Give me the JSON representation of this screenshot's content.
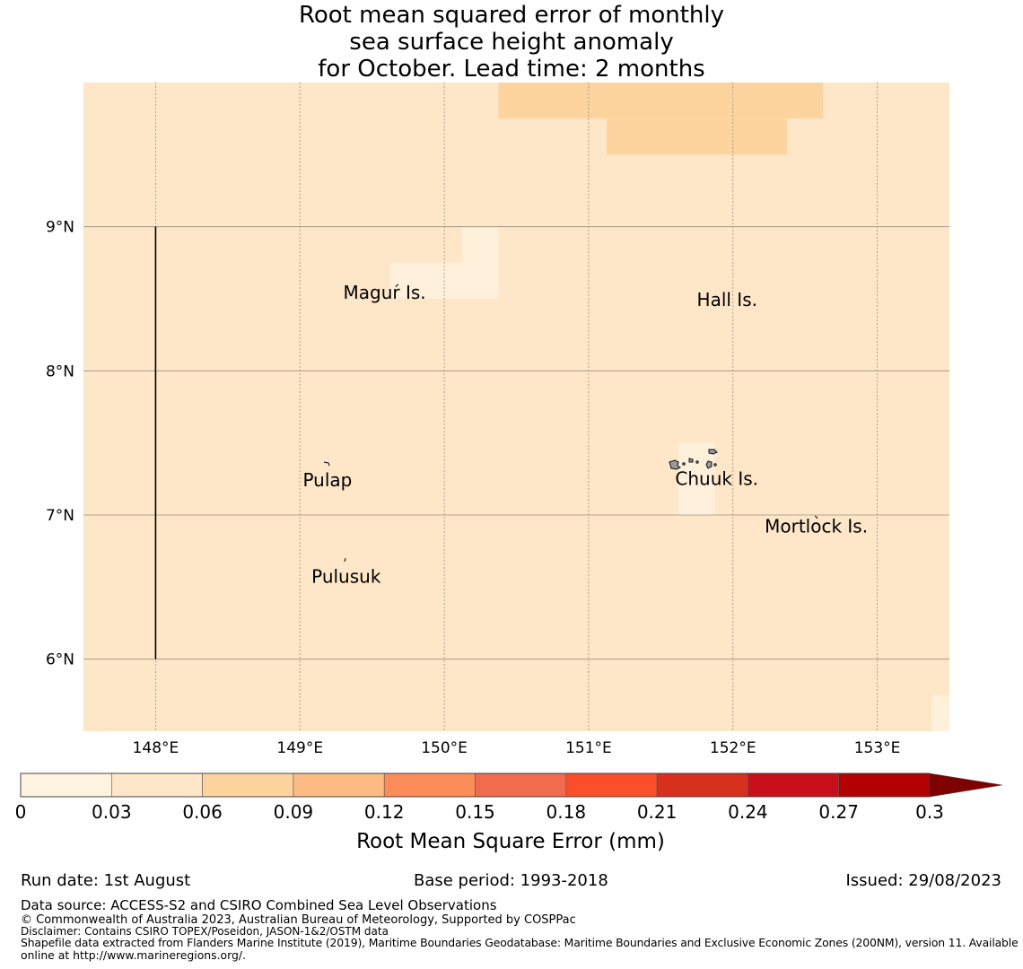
{
  "title": {
    "line1": "Root mean squared error of monthly",
    "line2": "sea surface height anomaly",
    "line3": "for October. Lead time: 2 months"
  },
  "map": {
    "lon_range": [
      147.5,
      153.5
    ],
    "lat_range": [
      5.5,
      10.0
    ],
    "x_ticks": [
      148,
      149,
      150,
      151,
      152,
      153
    ],
    "x_tick_labels": [
      "148°E",
      "149°E",
      "150°E",
      "151°E",
      "152°E",
      "153°E"
    ],
    "y_ticks": [
      9,
      8,
      7,
      6
    ],
    "y_tick_labels": [
      "9°N",
      "8°N",
      "7°N",
      "6°N"
    ],
    "grid": true,
    "background_color": "#fee6c8",
    "cells": [
      {
        "lon0": 150.375,
        "lon1": 152.625,
        "lat0": 9.75,
        "lat1": 10.0,
        "color": "#fdd49e"
      },
      {
        "lon0": 151.125,
        "lon1": 152.375,
        "lat0": 9.5,
        "lat1": 9.75,
        "color": "#fdd49e"
      },
      {
        "lon0": 150.125,
        "lon1": 150.375,
        "lat0": 8.75,
        "lat1": 9.0,
        "color": "#fff0dc"
      },
      {
        "lon0": 149.625,
        "lon1": 150.375,
        "lat0": 8.5,
        "lat1": 8.75,
        "color": "#fff0dc"
      },
      {
        "lon0": 151.625,
        "lon1": 151.875,
        "lat0": 7.0,
        "lat1": 7.5,
        "color": "#fff0dc"
      },
      {
        "lon0": 153.375,
        "lon1": 153.5,
        "lat0": 5.5,
        "lat1": 5.75,
        "color": "#fff0dc"
      }
    ],
    "boundary_line": {
      "lon": 148.0,
      "lat0": 6.0,
      "lat1": 9.0
    },
    "places": [
      {
        "name": "Magur Is.",
        "lon": 149.3,
        "lat": 8.5
      },
      {
        "name": "Hall Is.",
        "lon": 151.75,
        "lat": 8.45
      },
      {
        "name": "Pulap",
        "lon": 149.02,
        "lat": 7.2
      },
      {
        "name": "Chuuk Is.",
        "lon": 151.6,
        "lat": 7.21
      },
      {
        "name": "Mortlock Is.",
        "lon": 152.22,
        "lat": 6.88
      },
      {
        "name": "Pulusuk",
        "lon": 149.08,
        "lat": 6.53
      }
    ]
  },
  "colorbar": {
    "colors": [
      "#fff3e1",
      "#fee6c8",
      "#fdd49e",
      "#fdbb84",
      "#fc8d59",
      "#f16b4f",
      "#fc4e2a",
      "#d7301f",
      "#c8101a",
      "#b30000"
    ],
    "extend_color": "#7f0000",
    "tick_labels": [
      "0",
      "0.03",
      "0.06",
      "0.09",
      "0.12",
      "0.15",
      "0.18",
      "0.21",
      "0.24",
      "0.27",
      "0.3"
    ],
    "label": "Root Mean Square Error (mm)"
  },
  "footer": {
    "run_date": "Run date: 1st August",
    "base_period": "Base period: 1993-2018",
    "issued": "Issued: 29/08/2023",
    "data_source": "Data source: ACCESS-S2 and CSIRO Combined Sea Level Observations",
    "copyright": "© Commonwealth of Australia 2023, Australian Bureau of Meteorology, Supported by COSPPac",
    "disclaimer": "Disclaimer: Contains CSIRO TOPEX/Poseidon, JASON-1&2/OSTM data",
    "shapefile_line1": "Shapefile data extracted from Flanders Marine Institute (2019), Maritime Boundaries Geodatabase: Maritime Boundaries and Exclusive Economic Zones (200NM), version 11. Available",
    "shapefile_line2": "online at http://www.marineregions.org/."
  }
}
